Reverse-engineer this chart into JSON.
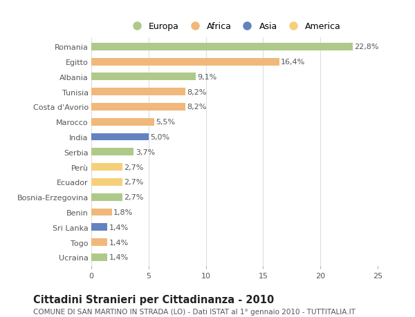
{
  "countries": [
    "Romania",
    "Egitto",
    "Albania",
    "Tunisia",
    "Costa d'Avorio",
    "Marocco",
    "India",
    "Serbia",
    "Perù",
    "Ecuador",
    "Bosnia-Erzegovina",
    "Benin",
    "Sri Lanka",
    "Togo",
    "Ucraina"
  ],
  "values": [
    22.8,
    16.4,
    9.1,
    8.2,
    8.2,
    5.5,
    5.0,
    3.7,
    2.7,
    2.7,
    2.7,
    1.8,
    1.4,
    1.4,
    1.4
  ],
  "labels": [
    "22,8%",
    "16,4%",
    "9,1%",
    "8,2%",
    "8,2%",
    "5,5%",
    "5,0%",
    "3,7%",
    "2,7%",
    "2,7%",
    "2,7%",
    "1,8%",
    "1,4%",
    "1,4%",
    "1,4%"
  ],
  "continents": [
    "Europa",
    "Africa",
    "Europa",
    "Africa",
    "Africa",
    "Africa",
    "Asia",
    "Europa",
    "America",
    "America",
    "Europa",
    "Africa",
    "Asia",
    "Africa",
    "Europa"
  ],
  "colors": {
    "Europa": "#aec98a",
    "Africa": "#f0b87a",
    "Asia": "#6382c0",
    "America": "#f5d07a"
  },
  "legend_order": [
    "Europa",
    "Africa",
    "Asia",
    "America"
  ],
  "xlim": [
    0,
    25
  ],
  "xticks": [
    0,
    5,
    10,
    15,
    20,
    25
  ],
  "title": "Cittadini Stranieri per Cittadinanza - 2010",
  "subtitle": "COMUNE DI SAN MARTINO IN STRADA (LO) - Dati ISTAT al 1° gennaio 2010 - TUTTITALIA.IT",
  "bg_color": "#ffffff",
  "grid_color": "#dddddd",
  "bar_height": 0.5,
  "label_fontsize": 8,
  "tick_fontsize": 8,
  "title_fontsize": 10.5,
  "subtitle_fontsize": 7.5
}
